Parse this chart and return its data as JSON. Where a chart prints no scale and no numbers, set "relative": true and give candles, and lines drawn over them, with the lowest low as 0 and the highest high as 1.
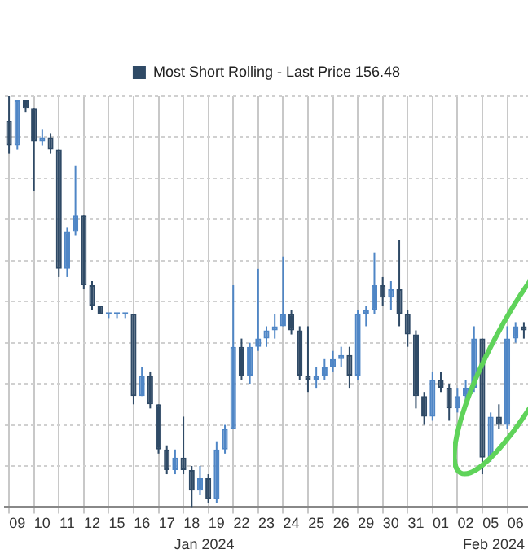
{
  "chart_data": {
    "type": "candlestick",
    "relative": true,
    "grid": true,
    "legend": "top",
    "categories": [
      null,
      "09",
      null,
      null,
      "10",
      null,
      null,
      "11",
      null,
      null,
      "12",
      null,
      null,
      "15",
      null,
      null,
      "16",
      null,
      null,
      "17",
      null,
      null,
      "18",
      null,
      null,
      "19",
      null,
      null,
      "22",
      null,
      null,
      "23",
      null,
      null,
      "24",
      null,
      null,
      "25",
      null,
      null,
      "26",
      null,
      null,
      "29",
      null,
      null,
      "30",
      null,
      null,
      "31",
      null,
      null,
      "01",
      null,
      null,
      "02",
      null,
      null,
      "05",
      null,
      null,
      "06",
      null
    ],
    "series": [
      {
        "name": "Most Short Rolling - Last Price 156.48",
        "color": "#2f4a66",
        "colors": [
          "#2f4a66",
          "#4f86c6",
          "#2f4a66",
          "#2f4a66",
          "#4f86c6",
          "#2f4a66",
          "#2f4a66",
          "#4f86c6",
          "#4f86c6",
          "#2f4a66",
          "#2f4a66",
          "#2f4a66",
          "#4f86c6",
          "#4f86c6",
          "#4f86c6",
          "#2f4a66",
          "#4f86c6",
          "#2f4a66",
          "#2f4a66",
          "#2f4a66",
          "#4f86c6",
          "#2f4a66",
          "#2f4a66",
          "#4f86c6",
          "#2f4a66",
          "#4f86c6",
          "#4f86c6",
          "#4f86c6",
          "#2f4a66",
          "#4f86c6",
          "#4f86c6",
          "#4f86c6",
          "#4f86c6",
          "#4f86c6",
          "#2f4a66",
          "#2f4a66",
          "#2f4a66",
          "#4f86c6",
          "#4f86c6",
          "#4f86c6",
          "#4f86c6",
          "#2f4a66",
          "#4f86c6",
          "#4f86c6",
          "#4f86c6",
          "#2f4a66",
          "#4f86c6",
          "#2f4a66",
          "#2f4a66",
          "#2f4a66",
          "#2f4a66",
          "#4f86c6",
          "#2f4a66",
          "#2f4a66",
          "#4f86c6",
          "#4f86c6",
          "#4f86c6",
          "#2f4a66",
          "#4f86c6",
          "#2f4a66",
          "#4f86c6",
          "#4f86c6",
          "#2f4a66"
        ],
        "ohlc": [
          [
            0.94,
            1.0,
            0.86,
            0.88
          ],
          [
            0.88,
            0.99,
            0.87,
            0.99
          ],
          [
            0.99,
            0.99,
            0.96,
            0.97
          ],
          [
            0.97,
            0.97,
            0.77,
            0.89
          ],
          [
            0.89,
            0.92,
            0.88,
            0.9
          ],
          [
            0.9,
            0.91,
            0.86,
            0.87
          ],
          [
            0.87,
            0.87,
            0.56,
            0.58
          ],
          [
            0.58,
            0.68,
            0.56,
            0.67
          ],
          [
            0.67,
            0.83,
            0.66,
            0.71
          ],
          [
            0.71,
            0.71,
            0.53,
            0.54
          ],
          [
            0.54,
            0.55,
            0.48,
            0.49
          ],
          [
            0.49,
            0.49,
            0.47,
            0.47
          ],
          [
            0.47,
            0.47,
            0.46,
            0.47
          ],
          [
            0.47,
            0.47,
            0.46,
            0.47
          ],
          [
            0.47,
            0.47,
            0.46,
            0.47
          ],
          [
            0.47,
            0.47,
            0.25,
            0.27
          ],
          [
            0.27,
            0.34,
            0.27,
            0.32
          ],
          [
            0.32,
            0.33,
            0.24,
            0.25
          ],
          [
            0.25,
            0.25,
            0.13,
            0.14
          ],
          [
            0.14,
            0.15,
            0.08,
            0.09
          ],
          [
            0.09,
            0.14,
            0.08,
            0.12
          ],
          [
            0.12,
            0.22,
            0.08,
            0.09
          ],
          [
            0.09,
            0.1,
            0.0,
            0.04
          ],
          [
            0.04,
            0.1,
            0.03,
            0.07
          ],
          [
            0.07,
            0.08,
            0.01,
            0.02
          ],
          [
            0.02,
            0.16,
            0.01,
            0.14
          ],
          [
            0.14,
            0.2,
            0.13,
            0.19
          ],
          [
            0.19,
            0.54,
            0.19,
            0.39
          ],
          [
            0.39,
            0.41,
            0.31,
            0.32
          ],
          [
            0.32,
            0.4,
            0.3,
            0.39
          ],
          [
            0.39,
            0.58,
            0.38,
            0.41
          ],
          [
            0.41,
            0.44,
            0.39,
            0.43
          ],
          [
            0.43,
            0.47,
            0.41,
            0.44
          ],
          [
            0.44,
            0.61,
            0.44,
            0.47
          ],
          [
            0.47,
            0.48,
            0.42,
            0.43
          ],
          [
            0.43,
            0.44,
            0.31,
            0.32
          ],
          [
            0.32,
            0.44,
            0.28,
            0.31
          ],
          [
            0.31,
            0.34,
            0.29,
            0.32
          ],
          [
            0.32,
            0.36,
            0.31,
            0.34
          ],
          [
            0.34,
            0.38,
            0.33,
            0.36
          ],
          [
            0.36,
            0.39,
            0.34,
            0.37
          ],
          [
            0.37,
            0.39,
            0.29,
            0.32
          ],
          [
            0.32,
            0.48,
            0.31,
            0.47
          ],
          [
            0.47,
            0.49,
            0.44,
            0.48
          ],
          [
            0.48,
            0.62,
            0.47,
            0.54
          ],
          [
            0.54,
            0.56,
            0.49,
            0.51
          ],
          [
            0.51,
            0.55,
            0.48,
            0.53
          ],
          [
            0.53,
            0.65,
            0.44,
            0.47
          ],
          [
            0.47,
            0.48,
            0.39,
            0.42
          ],
          [
            0.42,
            0.43,
            0.24,
            0.27
          ],
          [
            0.27,
            0.28,
            0.2,
            0.22
          ],
          [
            0.22,
            0.33,
            0.21,
            0.31
          ],
          [
            0.31,
            0.33,
            0.28,
            0.29
          ],
          [
            0.29,
            0.3,
            0.21,
            0.24
          ],
          [
            0.24,
            0.29,
            0.23,
            0.27
          ],
          [
            0.27,
            0.31,
            0.25,
            0.29
          ],
          [
            0.29,
            0.44,
            0.28,
            0.41
          ],
          [
            0.41,
            0.41,
            0.08,
            0.12
          ],
          [
            0.12,
            0.23,
            0.11,
            0.22
          ],
          [
            0.22,
            0.25,
            0.19,
            0.2
          ],
          [
            0.2,
            0.44,
            0.19,
            0.41
          ],
          [
            0.41,
            0.45,
            0.4,
            0.44
          ],
          [
            0.44,
            0.45,
            0.41,
            0.43
          ]
        ]
      }
    ],
    "annotations": [
      "Jan 2024",
      "Feb 2024"
    ]
  }
}
